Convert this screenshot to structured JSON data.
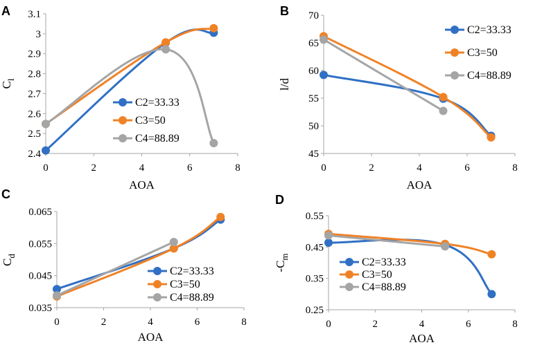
{
  "colors": {
    "C2": "#3070c4",
    "C3": "#f08226",
    "C4": "#a5a5a5",
    "axis": "#a6a6a6"
  },
  "chart_data": [
    {
      "type": "line",
      "panel": "A",
      "xlabel": "AOA",
      "ylabel": "C",
      "ylabel_sub": "l",
      "xlim": [
        0,
        8
      ],
      "xticks": [
        0,
        2,
        4,
        6,
        8
      ],
      "ylim": [
        2.4,
        3.1
      ],
      "yticks": [
        2.4,
        2.5,
        2.6,
        2.7,
        2.8,
        2.9,
        3.0,
        3.1
      ],
      "ytick_labels": [
        "2.4",
        "2.5",
        "2.6",
        "2.7",
        "2.8",
        "2.9",
        "3",
        "3.1"
      ],
      "legend_position": "lower-center",
      "series": [
        {
          "name": "C2=33.33",
          "color": "#3070c4",
          "x": [
            0,
            5,
            7
          ],
          "y": [
            2.415,
            2.955,
            3.005
          ]
        },
        {
          "name": "C3=50",
          "color": "#f08226",
          "x": [
            0,
            5,
            7
          ],
          "y": [
            2.548,
            2.957,
            3.028
          ]
        },
        {
          "name": "C4=88.89",
          "color": "#a5a5a5",
          "x": [
            0,
            5,
            7
          ],
          "y": [
            2.548,
            2.922,
            2.452
          ]
        }
      ]
    },
    {
      "type": "line",
      "panel": "B",
      "xlabel": "AOA",
      "ylabel": "l/d",
      "ylabel_sub": "",
      "xlim": [
        0,
        8
      ],
      "xticks": [
        0,
        2,
        4,
        6,
        8
      ],
      "ylim": [
        45,
        70
      ],
      "yticks": [
        45,
        50,
        55,
        60,
        65,
        70
      ],
      "ytick_labels": [
        "45",
        "50",
        "55",
        "60",
        "65",
        "70"
      ],
      "legend_position": "top-right",
      "series": [
        {
          "name": "C2=33.33",
          "color": "#3070c4",
          "x": [
            0,
            5,
            7
          ],
          "y": [
            59.2,
            54.9,
            48.2
          ]
        },
        {
          "name": "C3=50",
          "color": "#f08226",
          "x": [
            0,
            5,
            7
          ],
          "y": [
            66.2,
            55.2,
            47.9
          ]
        },
        {
          "name": "C4=88.89",
          "color": "#a5a5a5",
          "x": [
            0,
            5
          ],
          "y": [
            65.6,
            52.7
          ]
        }
      ]
    },
    {
      "type": "line",
      "panel": "C",
      "xlabel": "AOA",
      "ylabel": "C",
      "ylabel_sub": "d",
      "xlim": [
        0,
        8
      ],
      "xticks": [
        0,
        2,
        4,
        6,
        8
      ],
      "ylim": [
        0.035,
        0.065
      ],
      "yticks": [
        0.035,
        0.045,
        0.055,
        0.065
      ],
      "ytick_labels": [
        "0.035",
        "0.045",
        "0.055",
        "0.065"
      ],
      "legend_position": "lower-right",
      "series": [
        {
          "name": "C2=33.33",
          "color": "#3070c4",
          "x": [
            0,
            5,
            7
          ],
          "y": [
            0.0408,
            0.0535,
            0.0625
          ]
        },
        {
          "name": "C3=50",
          "color": "#f08226",
          "x": [
            0,
            5,
            7
          ],
          "y": [
            0.0385,
            0.0535,
            0.0633
          ]
        },
        {
          "name": "C4=88.89",
          "color": "#a5a5a5",
          "x": [
            0,
            5
          ],
          "y": [
            0.0388,
            0.0555
          ]
        }
      ]
    },
    {
      "type": "line",
      "panel": "D",
      "xlabel": "AOA",
      "ylabel": "-C",
      "ylabel_sub": "m",
      "xlim": [
        0,
        8
      ],
      "xticks": [
        0,
        2,
        4,
        6,
        8
      ],
      "ylim": [
        0.25,
        0.55
      ],
      "yticks": [
        0.25,
        0.35,
        0.45,
        0.55
      ],
      "ytick_labels": [
        "0.25",
        "0.35",
        "0.45",
        "0.55"
      ],
      "legend_position": "lower-left",
      "series": [
        {
          "name": "C2=33.33",
          "color": "#3070c4",
          "x": [
            0,
            5,
            7
          ],
          "y": [
            0.464,
            0.457,
            0.3
          ]
        },
        {
          "name": "C3=50",
          "color": "#f08226",
          "x": [
            0,
            5,
            7
          ],
          "y": [
            0.492,
            0.46,
            0.427
          ]
        },
        {
          "name": "C4=88.89",
          "color": "#a5a5a5",
          "x": [
            0,
            5
          ],
          "y": [
            0.487,
            0.452
          ]
        }
      ]
    }
  ]
}
